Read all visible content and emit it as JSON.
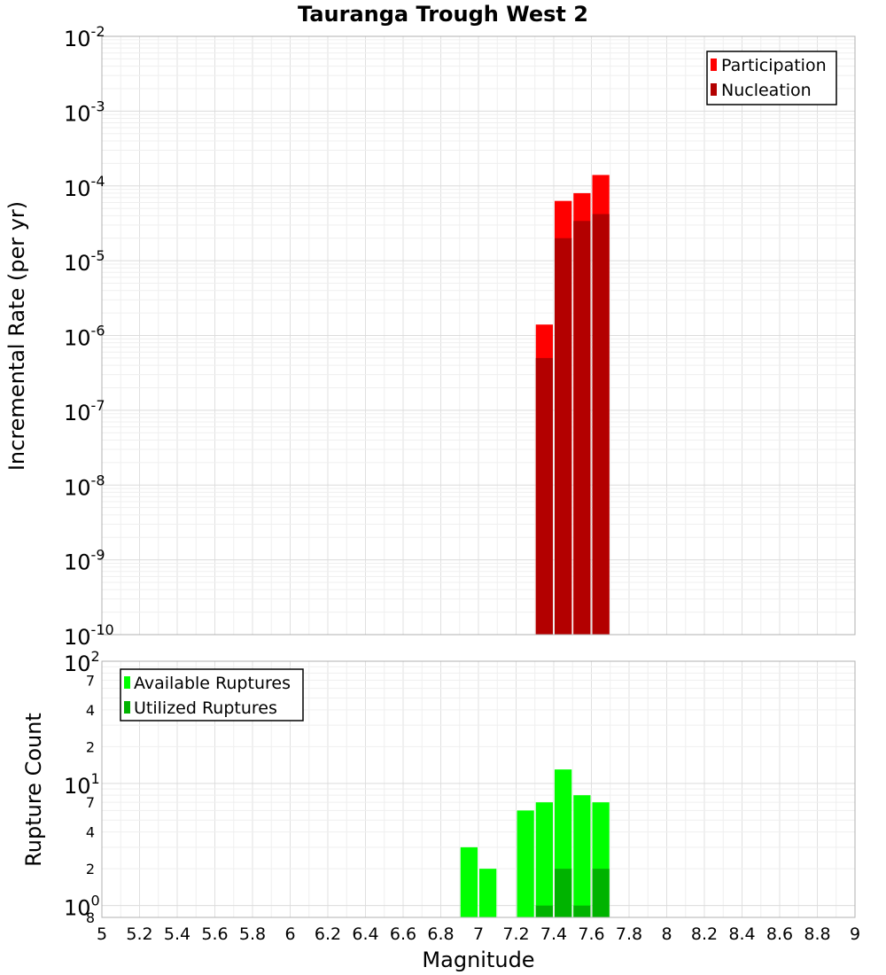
{
  "chart_data": [
    {
      "type": "bar",
      "title": "Tauranga Trough West 2",
      "ylabel": "Incremental Rate (per yr)",
      "xlabel": "",
      "xlim": [
        5,
        9
      ],
      "ylim": [
        1e-10,
        0.01
      ],
      "yscale": "log",
      "grid": true,
      "legend_position": "top-right",
      "y_ticks": [
        {
          "base": "10",
          "exp": "-10"
        },
        {
          "base": "10",
          "exp": "-9"
        },
        {
          "base": "10",
          "exp": "-8"
        },
        {
          "base": "10",
          "exp": "-7"
        },
        {
          "base": "10",
          "exp": "-6"
        },
        {
          "base": "10",
          "exp": "-5"
        },
        {
          "base": "10",
          "exp": "-4"
        },
        {
          "base": "10",
          "exp": "-3"
        },
        {
          "base": "10",
          "exp": "-2"
        }
      ],
      "bin_width": 0.1,
      "series": [
        {
          "name": "Participation",
          "color": "#ff0000",
          "x": [
            7.35,
            7.45,
            7.55,
            7.65
          ],
          "values": [
            1.4e-06,
            6.3e-05,
            8e-05,
            0.00014
          ]
        },
        {
          "name": "Nucleation",
          "color": "#b30000",
          "x": [
            7.35,
            7.45,
            7.55,
            7.65
          ],
          "values": [
            5e-07,
            2e-05,
            3.4e-05,
            4.2e-05
          ]
        }
      ]
    },
    {
      "type": "bar",
      "title": "",
      "ylabel": "Rupture Count",
      "xlabel": "Magnitude",
      "xlim": [
        5,
        9
      ],
      "ylim": [
        0.8,
        100
      ],
      "yscale": "log",
      "grid": true,
      "legend_position": "top-left",
      "x_ticks": [
        "5",
        "5.2",
        "5.4",
        "5.6",
        "5.8",
        "6",
        "6.2",
        "6.4",
        "6.6",
        "6.8",
        "7",
        "7.2",
        "7.4",
        "7.6",
        "7.8",
        "8",
        "8.2",
        "8.4",
        "8.6",
        "8.8",
        "9"
      ],
      "y_major_ticks": [
        {
          "value": 1,
          "base": "10",
          "exp": "0"
        },
        {
          "value": 10,
          "base": "10",
          "exp": "1"
        },
        {
          "value": 100,
          "base": "10",
          "exp": "2"
        }
      ],
      "y_minor_ticks": [
        {
          "value": 0.8,
          "label": "8"
        },
        {
          "value": 2,
          "label": "2"
        },
        {
          "value": 4,
          "label": "4"
        },
        {
          "value": 7,
          "label": "7"
        },
        {
          "value": 20,
          "label": "2"
        },
        {
          "value": 40,
          "label": "4"
        },
        {
          "value": 70,
          "label": "7"
        }
      ],
      "bin_width": 0.1,
      "series": [
        {
          "name": "Available Ruptures",
          "color": "#00ff00",
          "x": [
            6.95,
            7.05,
            7.25,
            7.35,
            7.45,
            7.55,
            7.65
          ],
          "values": [
            3,
            2,
            6,
            7,
            13,
            8,
            7
          ]
        },
        {
          "name": "Utilized Ruptures",
          "color": "#00b300",
          "x": [
            7.35,
            7.45,
            7.55,
            7.65
          ],
          "values": [
            1,
            2,
            1,
            2
          ]
        }
      ]
    }
  ]
}
